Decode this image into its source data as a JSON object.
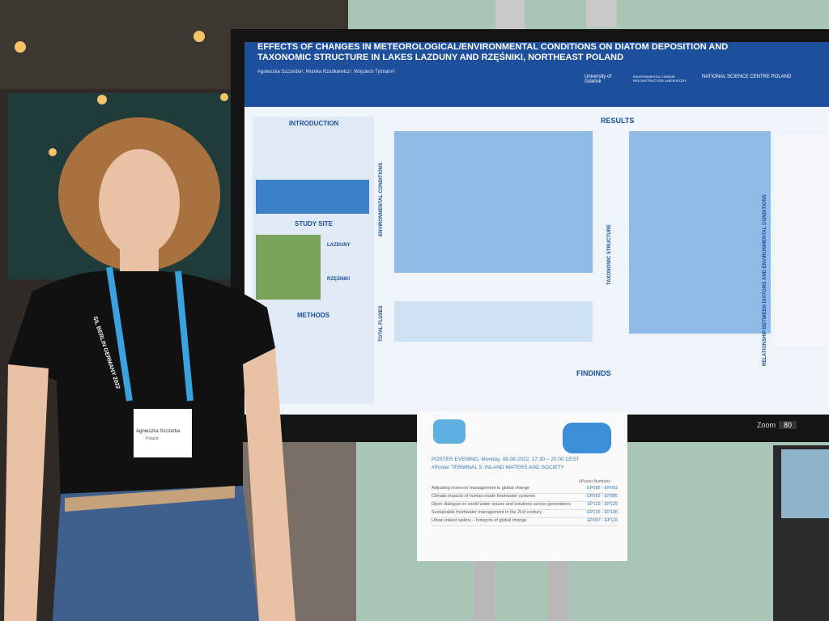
{
  "poster": {
    "title": "EFFECTS OF CHANGES IN METEOROLOGICAL/ENVIRONMENTAL CONDITIONS ON DIATOM DEPOSITION AND TAXONOMIC STRUCTURE IN LAKES LAZDUNY AND RZĘŚNIKI, NORTHEAST POLAND",
    "authors": "Agnieszka Szczerba¹, Monika Rzodkiewicz¹, Wojciech Tylmann¹",
    "logos": [
      "University of Gdańsk",
      "ENVIRONMENTAL CHANGE RECONSTRUCTION LABORATORY",
      "NATIONAL SCIENCE CENTRE POLAND"
    ],
    "left_sections": [
      "INTRODUCTION",
      "STUDY SITE",
      "METHODS"
    ],
    "lakes": [
      "LAZDUNY",
      "RZĘŚNIKI"
    ],
    "results": "RESULTS",
    "axis_titles": [
      "ENVIRONMENTAL CONDITIONS",
      "TAXONOMIC STRUCTURE",
      "TOTAL FLUXES",
      "RELATIONSHIP BETWEEN DIATOMS AND ENVIRONMENTAL CONDITIONS"
    ],
    "findings": "FINDINDS"
  },
  "screen": {
    "zoom_label": "Zoom",
    "zoom_value": "80"
  },
  "badge": {
    "name": "Agnieszka Szczerba",
    "country": "Poland",
    "lanyard": "SIL BERLIN GERMANY 2022"
  },
  "sign": {
    "event": "POSTER EVENING: Monday, 08.08.2022, 17:30 – 20:00 CEST",
    "terminal": "#Poster TERMINAL 5: INLAND WATERS AND SOCIETY",
    "numbers_header": "ePoster Numbers",
    "sessions": [
      {
        "topic": "Adjusting reservoir management to global change",
        "numbers": "EP086 - EP093"
      },
      {
        "topic": "Climate impacts of human-made freshwater systems",
        "numbers": "EP082 - EP085"
      },
      {
        "topic": "Open dialogue on world water issues and solutions across generations",
        "numbers": "EP119 - EP125"
      },
      {
        "topic": "Sustainable freshwater management in the 21st century",
        "numbers": "EP126 - EP136"
      },
      {
        "topic": "Urban inland waters – hotspots of global change",
        "numbers": "EP097 - EP116"
      }
    ]
  }
}
